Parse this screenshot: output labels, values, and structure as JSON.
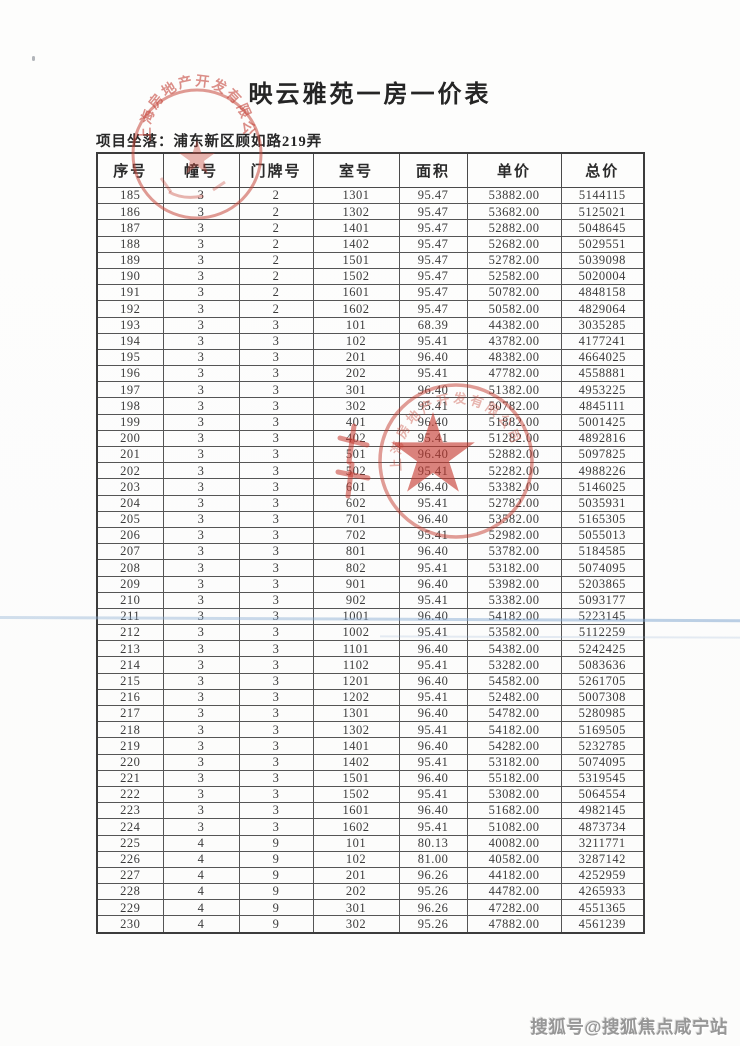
{
  "doc": {
    "title": "映云雅苑一房一价表",
    "location": "项目坐落：浦东新区顾如路219弄",
    "watermark": "搜狐号@搜狐焦点咸宁站"
  },
  "table": {
    "headers": [
      "序号",
      "幢号",
      "门牌号",
      "室号",
      "面积",
      "单价",
      "总价"
    ],
    "rows": [
      [
        "185",
        "3",
        "2",
        "1301",
        "95.47",
        "53882.00",
        "5144115"
      ],
      [
        "186",
        "3",
        "2",
        "1302",
        "95.47",
        "53682.00",
        "5125021"
      ],
      [
        "187",
        "3",
        "2",
        "1401",
        "95.47",
        "52882.00",
        "5048645"
      ],
      [
        "188",
        "3",
        "2",
        "1402",
        "95.47",
        "52682.00",
        "5029551"
      ],
      [
        "189",
        "3",
        "2",
        "1501",
        "95.47",
        "52782.00",
        "5039098"
      ],
      [
        "190",
        "3",
        "2",
        "1502",
        "95.47",
        "52582.00",
        "5020004"
      ],
      [
        "191",
        "3",
        "2",
        "1601",
        "95.47",
        "50782.00",
        "4848158"
      ],
      [
        "192",
        "3",
        "2",
        "1602",
        "95.47",
        "50582.00",
        "4829064"
      ],
      [
        "193",
        "3",
        "3",
        "101",
        "68.39",
        "44382.00",
        "3035285"
      ],
      [
        "194",
        "3",
        "3",
        "102",
        "95.41",
        "43782.00",
        "4177241"
      ],
      [
        "195",
        "3",
        "3",
        "201",
        "96.40",
        "48382.00",
        "4664025"
      ],
      [
        "196",
        "3",
        "3",
        "202",
        "95.41",
        "47782.00",
        "4558881"
      ],
      [
        "197",
        "3",
        "3",
        "301",
        "96.40",
        "51382.00",
        "4953225"
      ],
      [
        "198",
        "3",
        "3",
        "302",
        "95.41",
        "50782.00",
        "4845111"
      ],
      [
        "199",
        "3",
        "3",
        "401",
        "96.40",
        "51882.00",
        "5001425"
      ],
      [
        "200",
        "3",
        "3",
        "402",
        "95.41",
        "51282.00",
        "4892816"
      ],
      [
        "201",
        "3",
        "3",
        "501",
        "96.40",
        "52882.00",
        "5097825"
      ],
      [
        "202",
        "3",
        "3",
        "502",
        "95.41",
        "52282.00",
        "4988226"
      ],
      [
        "203",
        "3",
        "3",
        "601",
        "96.40",
        "53382.00",
        "5146025"
      ],
      [
        "204",
        "3",
        "3",
        "602",
        "95.41",
        "52782.00",
        "5035931"
      ],
      [
        "205",
        "3",
        "3",
        "701",
        "96.40",
        "53582.00",
        "5165305"
      ],
      [
        "206",
        "3",
        "3",
        "702",
        "95.41",
        "52982.00",
        "5055013"
      ],
      [
        "207",
        "3",
        "3",
        "801",
        "96.40",
        "53782.00",
        "5184585"
      ],
      [
        "208",
        "3",
        "3",
        "802",
        "95.41",
        "53182.00",
        "5074095"
      ],
      [
        "209",
        "3",
        "3",
        "901",
        "96.40",
        "53982.00",
        "5203865"
      ],
      [
        "210",
        "3",
        "3",
        "902",
        "95.41",
        "53382.00",
        "5093177"
      ],
      [
        "211",
        "3",
        "3",
        "1001",
        "96.40",
        "54182.00",
        "5223145"
      ],
      [
        "212",
        "3",
        "3",
        "1002",
        "95.41",
        "53582.00",
        "5112259"
      ],
      [
        "213",
        "3",
        "3",
        "1101",
        "96.40",
        "54382.00",
        "5242425"
      ],
      [
        "214",
        "3",
        "3",
        "1102",
        "95.41",
        "53282.00",
        "5083636"
      ],
      [
        "215",
        "3",
        "3",
        "1201",
        "96.40",
        "54582.00",
        "5261705"
      ],
      [
        "216",
        "3",
        "3",
        "1202",
        "95.41",
        "52482.00",
        "5007308"
      ],
      [
        "217",
        "3",
        "3",
        "1301",
        "96.40",
        "54782.00",
        "5280985"
      ],
      [
        "218",
        "3",
        "3",
        "1302",
        "95.41",
        "54182.00",
        "5169505"
      ],
      [
        "219",
        "3",
        "3",
        "1401",
        "96.40",
        "54282.00",
        "5232785"
      ],
      [
        "220",
        "3",
        "3",
        "1402",
        "95.41",
        "53182.00",
        "5074095"
      ],
      [
        "221",
        "3",
        "3",
        "1501",
        "96.40",
        "55182.00",
        "5319545"
      ],
      [
        "222",
        "3",
        "3",
        "1502",
        "95.41",
        "53082.00",
        "5064554"
      ],
      [
        "223",
        "3",
        "3",
        "1601",
        "96.40",
        "51682.00",
        "4982145"
      ],
      [
        "224",
        "3",
        "3",
        "1602",
        "95.41",
        "51082.00",
        "4873734"
      ],
      [
        "225",
        "4",
        "9",
        "101",
        "80.13",
        "40082.00",
        "3211771"
      ],
      [
        "226",
        "4",
        "9",
        "102",
        "81.00",
        "40582.00",
        "3287142"
      ],
      [
        "227",
        "4",
        "9",
        "201",
        "96.26",
        "44182.00",
        "4252959"
      ],
      [
        "228",
        "4",
        "9",
        "202",
        "95.26",
        "44782.00",
        "4265933"
      ],
      [
        "229",
        "4",
        "9",
        "301",
        "96.26",
        "47282.00",
        "4551365"
      ],
      [
        "230",
        "4",
        "9",
        "302",
        "95.26",
        "47882.00",
        "4561239"
      ]
    ]
  },
  "stamps": {
    "seal_color": "#c0453a",
    "top_seal_arc_text": "上海房地产开发有限公司",
    "mid_seal_arc_text": "上海房地产开发有限公司"
  }
}
